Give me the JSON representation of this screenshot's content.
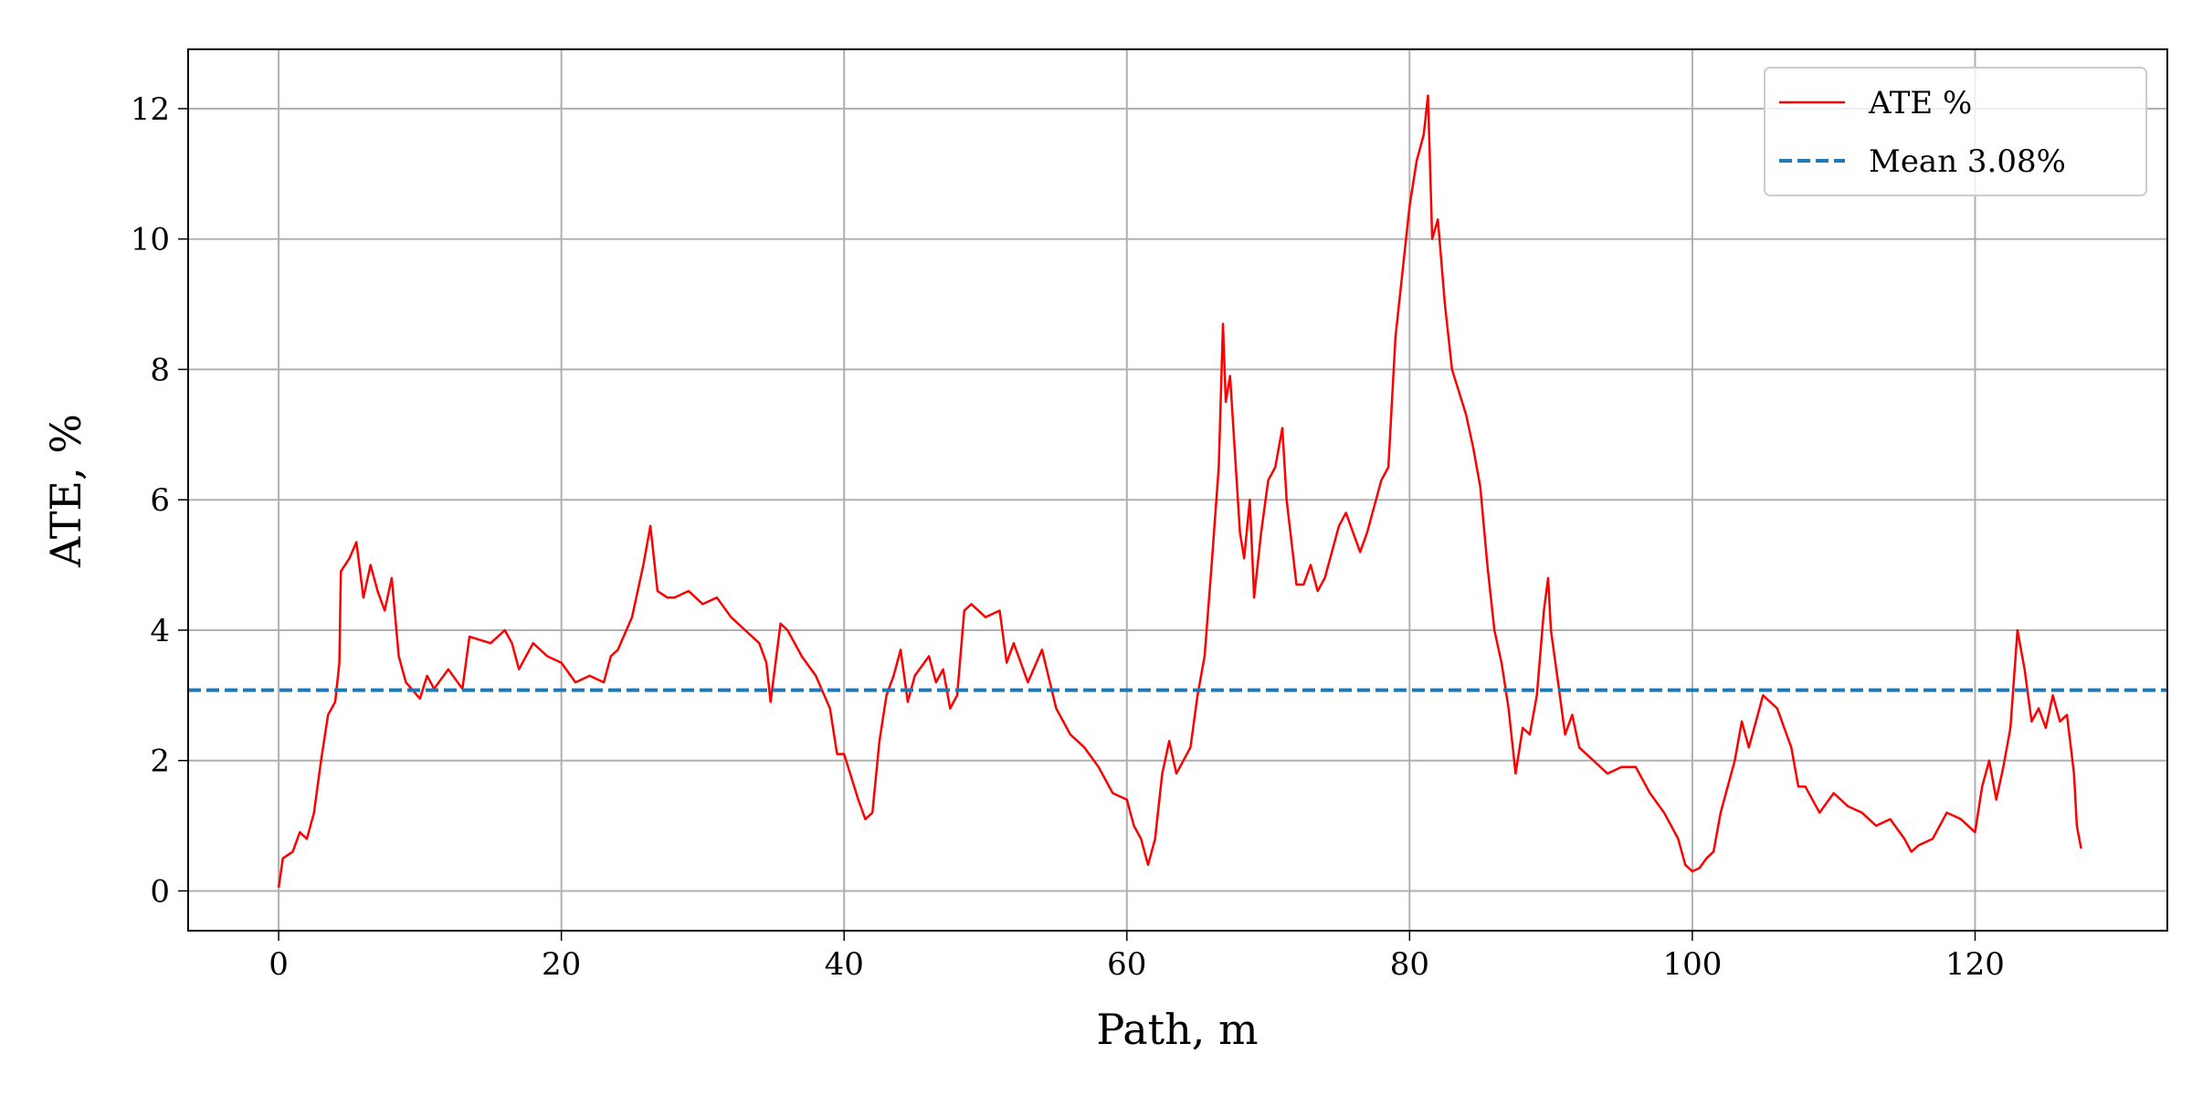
{
  "chart_data": {
    "type": "line",
    "xlabel": "Path, m",
    "ylabel": "ATE, %",
    "xlim": [
      -6.4,
      133.6
    ],
    "ylim": [
      -0.61,
      12.91
    ],
    "xticks": [
      0,
      20,
      40,
      60,
      80,
      100,
      120
    ],
    "yticks": [
      0,
      2,
      4,
      6,
      8,
      10,
      12
    ],
    "grid": true,
    "legend": "upper right",
    "series": [
      {
        "name": "ATE %",
        "color": "#ff0000",
        "x": [
          0,
          0.3,
          1,
          1.5,
          2,
          2.5,
          3,
          3.5,
          4,
          4.3,
          4.4,
          5,
          5.5,
          6,
          6.5,
          7,
          7.5,
          8,
          8.5,
          9,
          10,
          10.5,
          11,
          12,
          13,
          13.5,
          15,
          16,
          16.5,
          17,
          18,
          19,
          20,
          21,
          22,
          23,
          23.5,
          24,
          25,
          25.8,
          26.3,
          26.8,
          27.5,
          28,
          29,
          30,
          31,
          32,
          33,
          34,
          34.5,
          34.8,
          35.5,
          36,
          37,
          38,
          39,
          39.5,
          40,
          41,
          41.5,
          42,
          42.5,
          43,
          43.5,
          44,
          44.5,
          45,
          46,
          46.5,
          47,
          47.5,
          48,
          48.5,
          49,
          50,
          51,
          51.5,
          52,
          53,
          54,
          55,
          56,
          57,
          58,
          59,
          60,
          60.5,
          61,
          61.5,
          62,
          62.5,
          63,
          63.5,
          64,
          64.5,
          65,
          65.5,
          66,
          66.5,
          66.8,
          67,
          67.3,
          68,
          68.3,
          68.7,
          69,
          69.5,
          70,
          70.5,
          71,
          71.3,
          72,
          72.5,
          73,
          73.5,
          74,
          75,
          75.5,
          76,
          76.5,
          77,
          78,
          78.5,
          79,
          80,
          80.5,
          81,
          81.3,
          81.6,
          82,
          82.5,
          83,
          84,
          84.5,
          85,
          85.5,
          86,
          86.5,
          87,
          87.5,
          88,
          88.5,
          89,
          89.5,
          89.8,
          90,
          90.5,
          91,
          91.5,
          92,
          93,
          94,
          95,
          96,
          97,
          98,
          99,
          99.5,
          100,
          100.5,
          101,
          101.5,
          102,
          103,
          103.5,
          104,
          104.5,
          105,
          106,
          107,
          107.5,
          108,
          109,
          110,
          111,
          112,
          113,
          114,
          115,
          115.5,
          116,
          117,
          118,
          119,
          120,
          120.5,
          121,
          121.5,
          122,
          122.5,
          123,
          123.5,
          124,
          124.5,
          125,
          125.5,
          126,
          126.5,
          127,
          127.2,
          127.5
        ],
        "values": [
          0.05,
          0.5,
          0.6,
          0.9,
          0.8,
          1.2,
          2.0,
          2.7,
          2.9,
          3.5,
          4.9,
          5.1,
          5.35,
          4.5,
          5.0,
          4.6,
          4.3,
          4.8,
          3.6,
          3.2,
          2.95,
          3.3,
          3.1,
          3.4,
          3.1,
          3.9,
          3.8,
          4.0,
          3.8,
          3.4,
          3.8,
          3.6,
          3.5,
          3.2,
          3.3,
          3.2,
          3.6,
          3.7,
          4.2,
          5.0,
          5.6,
          4.6,
          4.5,
          4.5,
          4.6,
          4.4,
          4.5,
          4.2,
          4.0,
          3.8,
          3.5,
          2.9,
          4.1,
          4.0,
          3.6,
          3.3,
          2.8,
          2.1,
          2.1,
          1.4,
          1.1,
          1.2,
          2.3,
          3.0,
          3.3,
          3.7,
          2.9,
          3.3,
          3.6,
          3.2,
          3.4,
          2.8,
          3.0,
          4.3,
          4.4,
          4.2,
          4.3,
          3.5,
          3.8,
          3.2,
          3.7,
          2.8,
          2.4,
          2.2,
          1.9,
          1.5,
          1.4,
          1.0,
          0.8,
          0.4,
          0.8,
          1.8,
          2.3,
          1.8,
          2.0,
          2.2,
          3.0,
          3.6,
          5.0,
          6.5,
          8.7,
          7.5,
          7.9,
          5.5,
          5.1,
          6.0,
          4.5,
          5.5,
          6.3,
          6.5,
          7.1,
          6.0,
          4.7,
          4.7,
          5.0,
          4.6,
          4.8,
          5.6,
          5.8,
          5.5,
          5.2,
          5.5,
          6.3,
          6.5,
          8.5,
          10.5,
          11.2,
          11.6,
          12.2,
          10.0,
          10.3,
          9.0,
          8.0,
          7.3,
          6.8,
          6.2,
          5.0,
          4.0,
          3.5,
          2.8,
          1.8,
          2.5,
          2.4,
          3.0,
          4.3,
          4.8,
          4.0,
          3.2,
          2.4,
          2.7,
          2.2,
          2.0,
          1.8,
          1.9,
          1.9,
          1.5,
          1.2,
          0.8,
          0.4,
          0.3,
          0.35,
          0.5,
          0.6,
          1.2,
          2.0,
          2.6,
          2.2,
          2.6,
          3.0,
          2.8,
          2.2,
          1.6,
          1.6,
          1.2,
          1.5,
          1.3,
          1.2,
          1.0,
          1.1,
          0.8,
          0.6,
          0.7,
          0.8,
          1.2,
          1.1,
          0.9,
          1.6,
          2.0,
          1.4,
          1.9,
          2.5,
          4.0,
          3.4,
          2.6,
          2.8,
          2.5,
          3.0,
          2.6,
          2.7,
          1.8,
          1.0,
          0.65
        ]
      },
      {
        "name": "Mean 3.08%",
        "color": "#1f77b4",
        "kind": "hline",
        "dashed": true,
        "value": 3.08
      }
    ]
  }
}
